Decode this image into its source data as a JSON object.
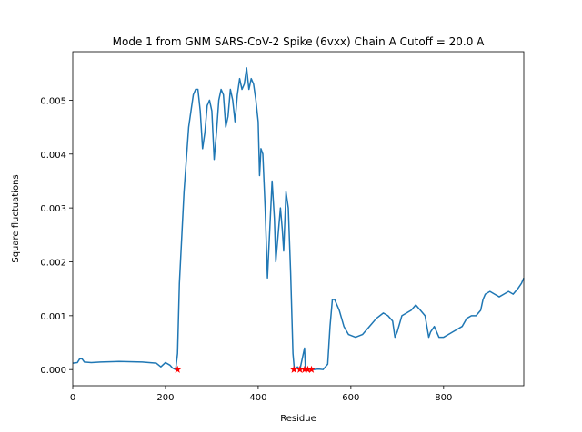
{
  "chart_data": {
    "type": "line",
    "title": "Mode 1 from GNM SARS-CoV-2 Spike (6vxx) Chain A Cutoff = 20.0 A",
    "x_label": "Residue",
    "y_label": "Square fluctuations",
    "xlim": [
      0,
      973
    ],
    "ylim": [
      -0.0003,
      0.0059
    ],
    "xticks": [
      0,
      200,
      400,
      600,
      800
    ],
    "yticks": [
      {
        "value": 0,
        "label": "0.000"
      },
      {
        "value": 0.001,
        "label": "0.001"
      },
      {
        "value": 0.002,
        "label": "0.002"
      },
      {
        "value": 0.003,
        "label": "0.003"
      },
      {
        "value": 0.004,
        "label": "0.004"
      },
      {
        "value": 0.005,
        "label": "0.005"
      }
    ],
    "series": [
      {
        "color": "#1f77b4",
        "style": "line",
        "x": [
          0,
          10,
          15,
          20,
          25,
          40,
          60,
          100,
          150,
          180,
          190,
          200,
          210,
          215,
          222,
          226,
          230,
          240,
          250,
          255,
          260,
          265,
          270,
          275,
          280,
          285,
          290,
          295,
          300,
          305,
          310,
          315,
          320,
          325,
          330,
          335,
          340,
          345,
          350,
          355,
          360,
          365,
          370,
          375,
          380,
          385,
          390,
          395,
          400,
          403,
          406,
          410,
          415,
          420,
          425,
          430,
          435,
          438,
          442,
          448,
          452,
          455,
          460,
          465,
          470,
          475,
          478,
          485,
          490,
          495,
          500,
          502,
          510,
          520,
          530,
          540,
          550,
          555,
          560,
          565,
          575,
          585,
          595,
          610,
          625,
          640,
          655,
          670,
          680,
          690,
          695,
          700,
          710,
          720,
          730,
          740,
          750,
          760,
          765,
          768,
          772,
          780,
          790,
          800,
          810,
          820,
          840,
          850,
          860,
          870,
          880,
          885,
          890,
          900,
          910,
          920,
          930,
          940,
          950,
          960,
          968,
          973
        ],
        "values": [
          0.00012,
          0.00013,
          0.0002,
          0.0002,
          0.00014,
          0.00013,
          0.00014,
          0.00015,
          0.00014,
          0.00012,
          5e-05,
          0.00013,
          8e-05,
          3e-05,
          0.0,
          0.0003,
          0.0016,
          0.0033,
          0.0045,
          0.0048,
          0.0051,
          0.0052,
          0.0052,
          0.0048,
          0.0041,
          0.0044,
          0.0049,
          0.005,
          0.0048,
          0.0039,
          0.0044,
          0.005,
          0.0052,
          0.0051,
          0.0045,
          0.0047,
          0.0052,
          0.005,
          0.0046,
          0.0051,
          0.0054,
          0.0052,
          0.0053,
          0.0056,
          0.0052,
          0.0054,
          0.0053,
          0.005,
          0.0046,
          0.0036,
          0.0041,
          0.004,
          0.003,
          0.0017,
          0.0026,
          0.0035,
          0.0028,
          0.002,
          0.0024,
          0.003,
          0.0026,
          0.0022,
          0.0033,
          0.003,
          0.0018,
          0.0003,
          0.0,
          5e-05,
          0.0,
          0.0002,
          0.0004,
          0.0,
          2e-05,
          0.0,
          1e-05,
          0.0,
          0.0001,
          0.0008,
          0.0013,
          0.0013,
          0.0011,
          0.0008,
          0.00065,
          0.0006,
          0.00065,
          0.0008,
          0.00095,
          0.00105,
          0.001,
          0.0009,
          0.0006,
          0.0007,
          0.001,
          0.00105,
          0.0011,
          0.0012,
          0.0011,
          0.001,
          0.00075,
          0.0006,
          0.0007,
          0.0008,
          0.0006,
          0.0006,
          0.00065,
          0.0007,
          0.0008,
          0.00095,
          0.001,
          0.001,
          0.0011,
          0.0013,
          0.0014,
          0.00145,
          0.0014,
          0.00135,
          0.0014,
          0.00145,
          0.0014,
          0.0015,
          0.0016,
          0.0017
        ]
      },
      {
        "color": "#ff0000",
        "style": "star",
        "x": [
          226,
          477,
          490,
          500,
          507,
          515
        ],
        "values": [
          0,
          0,
          0,
          0,
          0,
          0
        ]
      }
    ]
  }
}
